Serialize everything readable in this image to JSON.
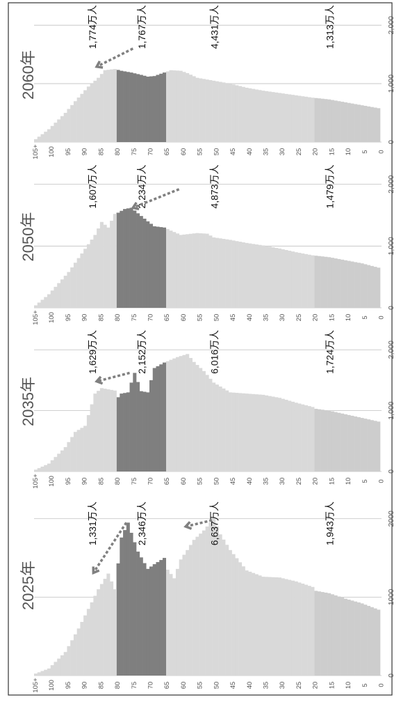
{
  "chart_data": [
    {
      "type": "bar",
      "year_label": "2025年",
      "orientation": "rotated-90",
      "age_tick_labels": [
        "105+",
        "100",
        "95",
        "90",
        "85",
        "80",
        "75",
        "70",
        "65",
        "60",
        "55",
        "50",
        "45",
        "40",
        "35",
        "30",
        "25",
        "20",
        "15",
        "10",
        "5",
        "0"
      ],
      "value_tick_labels": [
        "0",
        "1000",
        "2000"
      ],
      "segment_labels": [
        "1,331万人",
        "2,346万人",
        "6,637万人",
        "1,943万人"
      ],
      "colors": {
        "light": "#d9d9d9",
        "dark": "#7f7f7f",
        "youth": "#cdcdcd"
      },
      "ylim": [
        0,
        2300
      ],
      "dark_range": [
        65,
        79
      ],
      "age_profile": [
        [
          0,
          840
        ],
        [
          5,
          920
        ],
        [
          10,
          980
        ],
        [
          15,
          1050
        ],
        [
          19,
          1080
        ],
        [
          20,
          1130
        ],
        [
          25,
          1200
        ],
        [
          30,
          1250
        ],
        [
          35,
          1260
        ],
        [
          40,
          1340
        ],
        [
          45,
          1600
        ],
        [
          48,
          1800
        ],
        [
          50,
          2000
        ],
        [
          53,
          1850
        ],
        [
          56,
          1730
        ],
        [
          58,
          1600
        ],
        [
          60,
          1480
        ],
        [
          62,
          1240
        ],
        [
          64,
          1350
        ],
        [
          65,
          1500
        ],
        [
          68,
          1420
        ],
        [
          70,
          1360
        ],
        [
          73,
          1580
        ],
        [
          75,
          1820
        ],
        [
          76,
          1950
        ],
        [
          78,
          1760
        ],
        [
          80,
          1100
        ],
        [
          82,
          1300
        ],
        [
          85,
          1100
        ],
        [
          88,
          850
        ],
        [
          91,
          600
        ],
        [
          95,
          300
        ],
        [
          100,
          90
        ],
        [
          104,
          25
        ]
      ],
      "arrows": [
        {
          "from_age": 77,
          "from_value": 1950,
          "to_age": 87,
          "to_value": 1310
        },
        {
          "from_age": 51,
          "from_value": 1980,
          "to_age": 59,
          "to_value": 1900
        }
      ]
    },
    {
      "type": "bar",
      "year_label": "2035年",
      "orientation": "rotated-90",
      "age_tick_labels": [
        "105+",
        "100",
        "95",
        "90",
        "85",
        "80",
        "75",
        "70",
        "65",
        "60",
        "55",
        "50",
        "45",
        "40",
        "35",
        "30",
        "25",
        "20",
        "15",
        "10",
        "5",
        "0"
      ],
      "value_tick_labels": [
        "0",
        "1,000",
        "2,000"
      ],
      "segment_labels": [
        "1,629万人",
        "2,152万人",
        "6,016万人",
        "1,724万人"
      ],
      "colors": {
        "light": "#d9d9d9",
        "dark": "#7f7f7f",
        "youth": "#cdcdcd"
      },
      "ylim": [
        0,
        2300
      ],
      "dark_range": [
        65,
        79
      ],
      "age_profile": [
        [
          0,
          820
        ],
        [
          5,
          880
        ],
        [
          10,
          940
        ],
        [
          15,
          1000
        ],
        [
          19,
          1030
        ],
        [
          20,
          1060
        ],
        [
          25,
          1130
        ],
        [
          30,
          1210
        ],
        [
          35,
          1260
        ],
        [
          40,
          1280
        ],
        [
          45,
          1300
        ],
        [
          50,
          1460
        ],
        [
          53,
          1650
        ],
        [
          56,
          1800
        ],
        [
          58,
          1930
        ],
        [
          61,
          1880
        ],
        [
          65,
          1790
        ],
        [
          68,
          1700
        ],
        [
          70,
          1300
        ],
        [
          72,
          1320
        ],
        [
          74,
          1620
        ],
        [
          76,
          1300
        ],
        [
          78,
          1280
        ],
        [
          79,
          1220
        ],
        [
          80,
          1330
        ],
        [
          84,
          1370
        ],
        [
          86,
          1280
        ],
        [
          89,
          750
        ],
        [
          92,
          650
        ],
        [
          95,
          400
        ],
        [
          100,
          130
        ],
        [
          104,
          30
        ]
      ],
      "arrows": [
        {
          "from_age": 76,
          "from_value": 1620,
          "to_age": 86,
          "to_value": 1480
        }
      ]
    },
    {
      "type": "bar",
      "year_label": "2050年",
      "orientation": "rotated-90",
      "age_tick_labels": [
        "105+",
        "100",
        "95",
        "90",
        "85",
        "80",
        "75",
        "70",
        "65",
        "60",
        "55",
        "50",
        "45",
        "40",
        "35",
        "30",
        "25",
        "20",
        "15",
        "10",
        "5",
        "0"
      ],
      "value_tick_labels": [
        "0",
        "1,000",
        "2,000"
      ],
      "segment_labels": [
        "1,607万人",
        "2,234万人",
        "4,873万人",
        "1,479万人"
      ],
      "colors": {
        "light": "#d9d9d9",
        "dark": "#7f7f7f",
        "youth": "#cdcdcd"
      },
      "ylim": [
        0,
        2300
      ],
      "dark_range": [
        65,
        79
      ],
      "age_profile": [
        [
          0,
          650
        ],
        [
          5,
          720
        ],
        [
          10,
          770
        ],
        [
          15,
          820
        ],
        [
          20,
          850
        ],
        [
          25,
          900
        ],
        [
          30,
          960
        ],
        [
          35,
          1010
        ],
        [
          40,
          1050
        ],
        [
          45,
          1100
        ],
        [
          50,
          1140
        ],
        [
          52,
          1200
        ],
        [
          55,
          1210
        ],
        [
          60,
          1180
        ],
        [
          63,
          1250
        ],
        [
          65,
          1300
        ],
        [
          68,
          1320
        ],
        [
          70,
          1400
        ],
        [
          73,
          1530
        ],
        [
          75,
          1620
        ],
        [
          77,
          1600
        ],
        [
          79,
          1540
        ],
        [
          80,
          1520
        ],
        [
          82,
          1300
        ],
        [
          84,
          1390
        ],
        [
          86,
          1180
        ],
        [
          90,
          880
        ],
        [
          94,
          580
        ],
        [
          100,
          220
        ],
        [
          104,
          40
        ]
      ],
      "arrows": [
        {
          "from_age": 61,
          "from_value": 1920,
          "to_age": 75,
          "to_value": 1620
        }
      ]
    },
    {
      "type": "bar",
      "year_label": "2060年",
      "orientation": "rotated-90",
      "age_tick_labels": [
        "105+",
        "100",
        "95",
        "90",
        "85",
        "80",
        "75",
        "70",
        "65",
        "60",
        "55",
        "50",
        "45",
        "40",
        "35",
        "30",
        "25",
        "20",
        "15",
        "10",
        "5",
        "0"
      ],
      "value_tick_labels": [
        "0",
        "1,000",
        "2,000"
      ],
      "segment_labels": [
        "1,774万人",
        "1,767万人",
        "4,431万人",
        "1,313万人"
      ],
      "colors": {
        "light": "#d9d9d9",
        "dark": "#7f7f7f",
        "youth": "#cdcdcd"
      },
      "ylim": [
        0,
        2300
      ],
      "dark_range": [
        65,
        79
      ],
      "age_profile": [
        [
          0,
          580
        ],
        [
          5,
          630
        ],
        [
          10,
          680
        ],
        [
          15,
          730
        ],
        [
          20,
          760
        ],
        [
          25,
          800
        ],
        [
          30,
          840
        ],
        [
          35,
          880
        ],
        [
          40,
          930
        ],
        [
          45,
          1000
        ],
        [
          50,
          1050
        ],
        [
          55,
          1100
        ],
        [
          58,
          1180
        ],
        [
          60,
          1220
        ],
        [
          63,
          1230
        ],
        [
          65,
          1190
        ],
        [
          68,
          1130
        ],
        [
          70,
          1120
        ],
        [
          72,
          1150
        ],
        [
          75,
          1190
        ],
        [
          78,
          1220
        ],
        [
          80,
          1250
        ],
        [
          83,
          1230
        ],
        [
          85,
          1100
        ],
        [
          88,
          950
        ],
        [
          92,
          700
        ],
        [
          95,
          500
        ],
        [
          100,
          220
        ],
        [
          104,
          50
        ]
      ],
      "arrows": [
        {
          "from_age": 75,
          "from_value": 1600,
          "to_age": 86,
          "to_value": 1290
        }
      ]
    }
  ]
}
